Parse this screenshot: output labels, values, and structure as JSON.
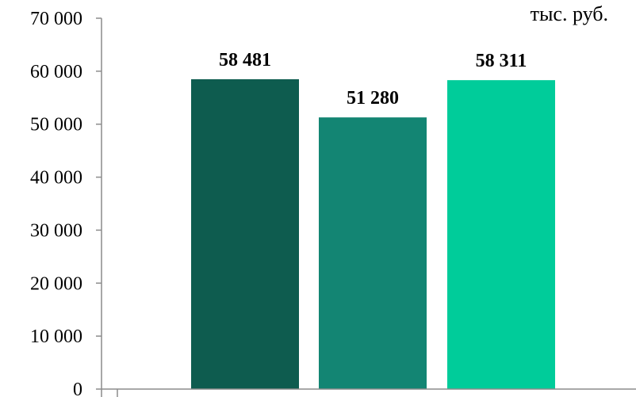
{
  "chart_data": {
    "type": "bar",
    "categories": [
      "",
      "",
      ""
    ],
    "values": [
      58481,
      51280,
      58311
    ],
    "value_labels": [
      "58 481",
      "51 280",
      "58 311"
    ],
    "bar_colors": [
      "#0e5c4f",
      "#138573",
      "#00cc9a"
    ],
    "title": "",
    "unit_label": "тыс. руб.",
    "xlabel": "",
    "ylabel": "",
    "ylim": [
      0,
      70000
    ],
    "yticks": [
      0,
      10000,
      20000,
      30000,
      40000,
      50000,
      60000,
      70000
    ],
    "ytick_labels": [
      "0",
      "10 000",
      "20 000",
      "30 000",
      "40 000",
      "50 000",
      "60 000",
      "70 000"
    ],
    "grid": false,
    "legend": "none"
  }
}
